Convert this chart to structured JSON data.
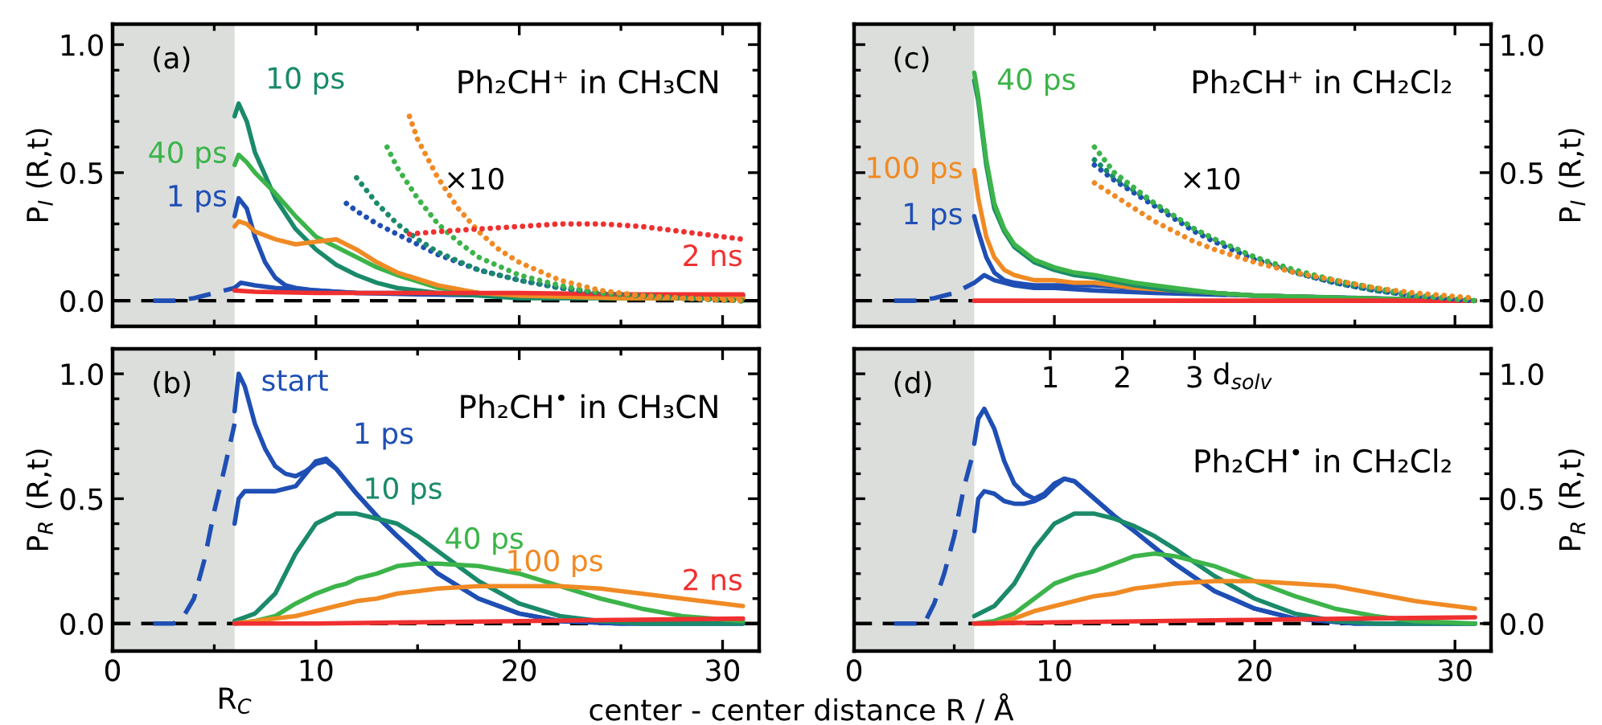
{
  "chart_data": [
    {
      "type": "line",
      "ylabel": "P$_{I}$ (R,t)",
      "title": "Ph₂CH⁺ in CH₃CN",
      "annotations": [
        "(a)",
        "×10"
      ],
      "tick_labels": "y",
      "xlim": [
        0,
        31.8
      ],
      "ylim": [
        -0.1,
        1.08
      ],
      "xticks": [
        0,
        {
          "value": 5,
          "label": null
        },
        10,
        {
          "value": 15,
          "label": null
        },
        20,
        {
          "value": 25,
          "label": null
        },
        30
      ],
      "yticks": [
        {
          "value": 0,
          "label": "0.0"
        },
        {
          "value": 0.1,
          "label": null
        },
        {
          "value": 0.2,
          "label": null
        },
        {
          "value": 0.3,
          "label": null
        },
        {
          "value": 0.4,
          "label": null
        },
        {
          "value": 0.5,
          "label": "0.5"
        },
        {
          "value": 0.6,
          "label": null
        },
        {
          "value": 0.7,
          "label": null
        },
        {
          "value": 0.8,
          "label": null
        },
        {
          "value": 0.9,
          "label": null
        },
        {
          "value": 1,
          "label": "1.0"
        }
      ],
      "bands": [
        {
          "axis": "x",
          "from": 0,
          "to": 6,
          "color": "#dcdedc"
        }
      ],
      "ref_lines": [
        {
          "axis": "y",
          "value": 0,
          "color": "#000000",
          "line_style": "dashed"
        }
      ],
      "series": [
        {
          "color": "#1f4fb4",
          "line_style": "dashed",
          "x": [
            2,
            3,
            4,
            4.5,
            5,
            5.5,
            6
          ],
          "values": [
            0,
            0,
            0.01,
            0.02,
            0.03,
            0.04,
            0.05
          ]
        },
        {
          "color": "#1f4fb4",
          "x": [
            6,
            6.3,
            7,
            8,
            9,
            10,
            12,
            15,
            20,
            31
          ],
          "values": [
            0.05,
            0.07,
            0.06,
            0.05,
            0.045,
            0.04,
            0.03,
            0.025,
            0.02,
            0.02
          ]
        },
        {
          "name": "1 ps",
          "color": "#1f4fb4",
          "x": [
            6,
            6.2,
            6.6,
            7,
            7.5,
            8,
            8.5,
            9,
            10,
            11,
            12,
            14,
            16,
            20,
            25,
            31
          ],
          "values": [
            0.33,
            0.4,
            0.36,
            0.25,
            0.15,
            0.09,
            0.06,
            0.05,
            0.04,
            0.035,
            0.03,
            0.03,
            0.025,
            0.02,
            0.02,
            0.02
          ]
        },
        {
          "name": "10 ps",
          "color": "#1a8a6a",
          "x": [
            6,
            6.2,
            6.6,
            7,
            8,
            9,
            10,
            11,
            12,
            13,
            14,
            16,
            18,
            20,
            25,
            31
          ],
          "values": [
            0.72,
            0.77,
            0.7,
            0.58,
            0.4,
            0.28,
            0.2,
            0.14,
            0.1,
            0.07,
            0.05,
            0.03,
            0.02,
            0.01,
            0.01,
            0.01
          ]
        },
        {
          "name": "40 ps",
          "color": "#3cb44a",
          "x": [
            6,
            6.2,
            6.6,
            7,
            8,
            9,
            10,
            11,
            12,
            13,
            14,
            16,
            18,
            20,
            25,
            31
          ],
          "values": [
            0.53,
            0.57,
            0.54,
            0.5,
            0.42,
            0.33,
            0.25,
            0.21,
            0.17,
            0.13,
            0.1,
            0.05,
            0.03,
            0.02,
            0.01,
            0.01
          ]
        },
        {
          "color": "#f08a24",
          "x": [
            6,
            6.2,
            6.6,
            7,
            8,
            9,
            10,
            11,
            12,
            13,
            14,
            16,
            18,
            20,
            25,
            31
          ],
          "values": [
            0.29,
            0.31,
            0.3,
            0.27,
            0.24,
            0.22,
            0.23,
            0.24,
            0.2,
            0.15,
            0.11,
            0.06,
            0.03,
            0.02,
            0.01,
            0.01
          ]
        },
        {
          "name": "2 ns",
          "color": "#f03030",
          "x": [
            6,
            7,
            10,
            15,
            20,
            25,
            31
          ],
          "values": [
            0.04,
            0.035,
            0.03,
            0.03,
            0.03,
            0.025,
            0.025
          ]
        },
        {
          "color": "#1f4fb4",
          "line_style": "dotted",
          "x": [
            11.5,
            12,
            13,
            14,
            15,
            16,
            18,
            20,
            22,
            24,
            26,
            28,
            31
          ],
          "values": [
            0.38,
            0.35,
            0.3,
            0.26,
            0.22,
            0.18,
            0.12,
            0.08,
            0.05,
            0.03,
            0.02,
            0.01,
            0.0
          ]
        },
        {
          "color": "#1a8a6a",
          "line_style": "dotted",
          "x": [
            12,
            13,
            14,
            15,
            16,
            18,
            20,
            22,
            24,
            26,
            28,
            31
          ],
          "values": [
            0.48,
            0.38,
            0.3,
            0.24,
            0.19,
            0.12,
            0.08,
            0.05,
            0.03,
            0.02,
            0.01,
            0.0
          ]
        },
        {
          "color": "#3cb44a",
          "line_style": "dotted",
          "x": [
            13.5,
            14,
            15,
            16,
            17,
            18,
            20,
            22,
            24,
            26,
            28,
            31
          ],
          "values": [
            0.6,
            0.52,
            0.4,
            0.3,
            0.23,
            0.17,
            0.1,
            0.06,
            0.03,
            0.02,
            0.01,
            0.0
          ]
        },
        {
          "color": "#f08a24",
          "line_style": "dotted",
          "x": [
            14.6,
            15,
            16,
            17,
            18,
            19,
            20,
            22,
            24,
            26,
            28,
            31
          ],
          "values": [
            0.72,
            0.63,
            0.48,
            0.36,
            0.27,
            0.2,
            0.15,
            0.08,
            0.04,
            0.02,
            0.01,
            0.0
          ]
        },
        {
          "color": "#f03030",
          "line_style": "dotted",
          "x": [
            14.6,
            16,
            18,
            20,
            22,
            24,
            26,
            28,
            31
          ],
          "values": [
            0.26,
            0.27,
            0.28,
            0.29,
            0.3,
            0.3,
            0.29,
            0.27,
            0.24
          ]
        }
      ]
    },
    {
      "type": "line",
      "y2label": "P$_{I}$ (R,t)",
      "title": "Ph₂CH⁺ in CH₂Cl₂",
      "annotations": [
        "(c)",
        "×10"
      ],
      "tick_labels": "y",
      "xlim": [
        0,
        31.8
      ],
      "y2lim": [
        -0.1,
        1.08
      ],
      "xticks": [
        0,
        {
          "value": 5,
          "label": null
        },
        10,
        {
          "value": 15,
          "label": null
        },
        20,
        {
          "value": 25,
          "label": null
        },
        30
      ],
      "y2ticks": [
        {
          "value": 0,
          "label": "0.0"
        },
        {
          "value": 0.1,
          "label": null
        },
        {
          "value": 0.2,
          "label": null
        },
        {
          "value": 0.3,
          "label": null
        },
        {
          "value": 0.4,
          "label": null
        },
        {
          "value": 0.5,
          "label": "0.5"
        },
        {
          "value": 0.6,
          "label": null
        },
        {
          "value": 0.7,
          "label": null
        },
        {
          "value": 0.8,
          "label": null
        },
        {
          "value": 0.9,
          "label": null
        },
        {
          "value": 1,
          "label": "1.0"
        }
      ],
      "bands": [
        {
          "axis": "x",
          "from": 0,
          "to": 6,
          "color": "#dcdedc"
        }
      ],
      "ref_lines": [
        {
          "axis": "y2",
          "value": 0,
          "color": "#000000",
          "line_style": "dashed"
        }
      ],
      "series": [
        {
          "axis": "y2",
          "color": "#1f4fb4",
          "line_style": "dashed",
          "x": [
            2,
            3,
            4,
            4.5,
            5,
            5.5,
            6
          ],
          "values": [
            0,
            0,
            0.01,
            0.02,
            0.03,
            0.05,
            0.07
          ]
        },
        {
          "axis": "y2",
          "color": "#1f4fb4",
          "x": [
            6,
            6.5,
            7,
            7.5,
            8,
            9,
            10,
            12,
            15,
            20,
            31
          ],
          "values": [
            0.07,
            0.1,
            0.08,
            0.07,
            0.06,
            0.05,
            0.05,
            0.04,
            0.03,
            0.02,
            0.0
          ]
        },
        {
          "axis": "y2",
          "name": "1 ps",
          "color": "#1f4fb4",
          "x": [
            6,
            6.2,
            6.6,
            7,
            7.5,
            8,
            9,
            10,
            11,
            12,
            14,
            16,
            18,
            20,
            25,
            31
          ],
          "values": [
            0.33,
            0.27,
            0.17,
            0.11,
            0.08,
            0.07,
            0.06,
            0.06,
            0.06,
            0.06,
            0.05,
            0.04,
            0.03,
            0.02,
            0.01,
            0.0
          ]
        },
        {
          "axis": "y2",
          "name": "100 ps",
          "color": "#f08a24",
          "x": [
            6,
            6.2,
            6.6,
            7,
            7.5,
            8,
            9,
            10,
            11,
            12,
            14,
            16,
            18,
            20,
            25,
            31
          ],
          "values": [
            0.51,
            0.4,
            0.25,
            0.17,
            0.12,
            0.1,
            0.08,
            0.08,
            0.07,
            0.07,
            0.05,
            0.04,
            0.03,
            0.02,
            0.01,
            0.0
          ]
        },
        {
          "axis": "y2",
          "color": "#1a8a6a",
          "x": [
            6,
            6.2,
            6.6,
            7,
            7.5,
            8,
            9,
            10,
            11,
            12,
            14,
            16,
            18,
            20,
            25,
            31
          ],
          "values": [
            0.86,
            0.78,
            0.53,
            0.36,
            0.27,
            0.21,
            0.15,
            0.12,
            0.1,
            0.09,
            0.06,
            0.04,
            0.03,
            0.02,
            0.01,
            0.0
          ]
        },
        {
          "axis": "y2",
          "name": "40 ps",
          "color": "#3cb44a",
          "x": [
            6,
            6.2,
            6.6,
            7,
            7.5,
            8,
            9,
            10,
            11,
            12,
            14,
            16,
            18,
            20,
            25,
            31
          ],
          "values": [
            0.89,
            0.8,
            0.55,
            0.38,
            0.28,
            0.22,
            0.16,
            0.13,
            0.11,
            0.1,
            0.07,
            0.05,
            0.03,
            0.02,
            0.01,
            0.0
          ]
        },
        {
          "axis": "y2",
          "color": "#f03030",
          "x": [
            6,
            10,
            20,
            31
          ],
          "values": [
            0.0,
            0.0,
            0.0,
            0.0
          ]
        },
        {
          "axis": "y2",
          "color": "#1f4fb4",
          "line_style": "dotted",
          "x": [
            12,
            13,
            14,
            15,
            16,
            17,
            18,
            20,
            22,
            24,
            26,
            28,
            31
          ],
          "values": [
            0.53,
            0.47,
            0.42,
            0.37,
            0.32,
            0.27,
            0.23,
            0.16,
            0.11,
            0.07,
            0.04,
            0.02,
            0.0
          ]
        },
        {
          "axis": "y2",
          "color": "#1a8a6a",
          "line_style": "dotted",
          "x": [
            12,
            13,
            14,
            15,
            16,
            17,
            18,
            20,
            22,
            24,
            26,
            28,
            31
          ],
          "values": [
            0.55,
            0.48,
            0.43,
            0.38,
            0.33,
            0.28,
            0.24,
            0.17,
            0.11,
            0.07,
            0.04,
            0.02,
            0.0
          ]
        },
        {
          "axis": "y2",
          "color": "#3cb44a",
          "line_style": "dotted",
          "x": [
            12,
            13,
            14,
            15,
            16,
            17,
            18,
            20,
            22,
            24,
            26,
            28,
            31
          ],
          "values": [
            0.6,
            0.5,
            0.44,
            0.38,
            0.33,
            0.28,
            0.24,
            0.17,
            0.12,
            0.08,
            0.05,
            0.02,
            0.0
          ]
        },
        {
          "axis": "y2",
          "color": "#f08a24",
          "line_style": "dotted",
          "x": [
            12,
            13,
            14,
            15,
            16,
            17,
            18,
            20,
            22,
            24,
            26,
            28,
            31
          ],
          "values": [
            0.46,
            0.41,
            0.36,
            0.31,
            0.27,
            0.23,
            0.2,
            0.15,
            0.11,
            0.08,
            0.05,
            0.03,
            0.01
          ]
        }
      ]
    },
    {
      "type": "line",
      "ylabel": "P$_{R}$ (R,t)",
      "xlabel": "center - center distance R / Å",
      "title": "Ph₂CH$^{•}$ in CH₃CN",
      "annotations": [
        "(b)"
      ],
      "xlim": [
        0,
        31.8
      ],
      "ylim": [
        -0.11,
        1.1
      ],
      "xticks": [
        0,
        {
          "value": 5,
          "label": null
        },
        10,
        {
          "value": 15,
          "label": null
        },
        20,
        {
          "value": 25,
          "label": null
        },
        30
      ],
      "yticks": [
        {
          "value": 0,
          "label": "0.0"
        },
        {
          "value": 0.1,
          "label": null
        },
        {
          "value": 0.2,
          "label": null
        },
        {
          "value": 0.3,
          "label": null
        },
        {
          "value": 0.4,
          "label": null
        },
        {
          "value": 0.5,
          "label": "0.5"
        },
        {
          "value": 0.6,
          "label": null
        },
        {
          "value": 0.7,
          "label": null
        },
        {
          "value": 0.8,
          "label": null
        },
        {
          "value": 0.9,
          "label": null
        },
        {
          "value": 1,
          "label": "1.0"
        }
      ],
      "bands": [
        {
          "axis": "x",
          "from": 0,
          "to": 6,
          "color": "#dcdedc",
          "label": "R$_{C}$"
        }
      ],
      "ref_lines": [
        {
          "axis": "y",
          "value": 0,
          "color": "#000000",
          "line_style": "dashed"
        }
      ],
      "series": [
        {
          "color": "#1f4fb4",
          "line_style": "dashed",
          "x": [
            2,
            3,
            3.5,
            4,
            4.5,
            5,
            5.5,
            6
          ],
          "values": [
            0,
            0,
            0.03,
            0.1,
            0.25,
            0.45,
            0.62,
            0.8
          ]
        },
        {
          "name": "start",
          "color": "#1f4fb4",
          "x": [
            6,
            6.2,
            6.5,
            7,
            7.5,
            8,
            8.5,
            9,
            9.5,
            10,
            10.5,
            11,
            12,
            13,
            14,
            16,
            18,
            20,
            22,
            25,
            31
          ],
          "values": [
            0.85,
            1.0,
            0.95,
            0.8,
            0.7,
            0.63,
            0.6,
            0.59,
            0.61,
            0.64,
            0.65,
            0.62,
            0.52,
            0.43,
            0.35,
            0.2,
            0.1,
            0.04,
            0.01,
            0.0,
            0.0
          ]
        },
        {
          "name": "1 ps",
          "color": "#1f4fb4",
          "x": [
            6,
            6.2,
            6.5,
            7,
            7.5,
            8,
            8.5,
            9,
            9.5,
            10,
            10.5,
            11,
            12,
            13,
            14,
            16,
            18,
            20,
            22,
            25,
            31
          ],
          "values": [
            0.4,
            0.5,
            0.53,
            0.53,
            0.53,
            0.53,
            0.54,
            0.55,
            0.6,
            0.65,
            0.66,
            0.62,
            0.52,
            0.43,
            0.35,
            0.2,
            0.1,
            0.04,
            0.01,
            0.0,
            0.0
          ]
        },
        {
          "name": "10 ps",
          "color": "#1a8a6a",
          "x": [
            6,
            7,
            8,
            9,
            10,
            11,
            11.5,
            12,
            13,
            14,
            15,
            16,
            18,
            20,
            22,
            24,
            26,
            28,
            31
          ],
          "values": [
            0.01,
            0.04,
            0.12,
            0.28,
            0.4,
            0.44,
            0.44,
            0.44,
            0.42,
            0.4,
            0.35,
            0.29,
            0.17,
            0.08,
            0.03,
            0.01,
            0.0,
            0.0,
            0.0
          ]
        },
        {
          "name": "40 ps",
          "color": "#3cb44a",
          "x": [
            6,
            7,
            8,
            9,
            10,
            11,
            11.5,
            12,
            13,
            14,
            15,
            16,
            18,
            20,
            22,
            24,
            26,
            28,
            31
          ],
          "values": [
            0.0,
            0.01,
            0.03,
            0.08,
            0.12,
            0.15,
            0.16,
            0.18,
            0.2,
            0.23,
            0.24,
            0.24,
            0.23,
            0.2,
            0.15,
            0.1,
            0.06,
            0.03,
            0.01
          ]
        },
        {
          "name": "100 ps",
          "color": "#f08a24",
          "x": [
            6,
            7,
            8,
            9,
            10,
            11,
            11.5,
            12,
            13,
            14,
            15,
            16,
            18,
            20,
            22,
            24,
            26,
            28,
            31
          ],
          "values": [
            0.0,
            0.01,
            0.02,
            0.03,
            0.05,
            0.07,
            0.08,
            0.09,
            0.1,
            0.12,
            0.13,
            0.14,
            0.15,
            0.15,
            0.15,
            0.14,
            0.12,
            0.1,
            0.07
          ]
        },
        {
          "name": "2 ns",
          "color": "#f03030",
          "x": [
            6,
            10,
            15,
            20,
            25,
            31
          ],
          "values": [
            0.0,
            0.0,
            0.005,
            0.01,
            0.015,
            0.02
          ]
        }
      ]
    },
    {
      "type": "line",
      "y2label": "P$_{R}$ (R,t)",
      "title": "Ph₂CH$^{•}$ in CH₂Cl₂",
      "annotations": [
        "(d)"
      ],
      "x2label": "d$_{solv}$",
      "xlim": [
        0,
        31.8
      ],
      "y2lim": [
        -0.11,
        1.1
      ],
      "x2lim": [
        -1.72,
        7.11
      ],
      "xticks": [
        0,
        {
          "value": 5,
          "label": null
        },
        10,
        {
          "value": 15,
          "label": null
        },
        20,
        {
          "value": 25,
          "label": null
        },
        30
      ],
      "x2ticks": [
        1,
        2,
        3
      ],
      "y2ticks": [
        {
          "value": 0,
          "label": "0.0"
        },
        {
          "value": 0.1,
          "label": null
        },
        {
          "value": 0.2,
          "label": null
        },
        {
          "value": 0.3,
          "label": null
        },
        {
          "value": 0.4,
          "label": null
        },
        {
          "value": 0.5,
          "label": "0.5"
        },
        {
          "value": 0.6,
          "label": null
        },
        {
          "value": 0.7,
          "label": null
        },
        {
          "value": 0.8,
          "label": null
        },
        {
          "value": 0.9,
          "label": null
        },
        {
          "value": 1,
          "label": "1.0"
        }
      ],
      "bands": [
        {
          "axis": "x",
          "from": 0,
          "to": 6,
          "color": "#dcdedc"
        }
      ],
      "ref_lines": [
        {
          "axis": "y2",
          "value": 0,
          "color": "#000000",
          "line_style": "dashed"
        }
      ],
      "series": [
        {
          "axis": "y2",
          "color": "#1f4fb4",
          "line_style": "dashed",
          "x": [
            2,
            3,
            3.5,
            4,
            4.5,
            5,
            5.5,
            6
          ],
          "values": [
            0,
            0,
            0.0,
            0.08,
            0.2,
            0.35,
            0.55,
            0.7
          ]
        },
        {
          "axis": "y2",
          "color": "#1f4fb4",
          "x": [
            6,
            6.2,
            6.5,
            7,
            7.5,
            8,
            8.5,
            9,
            9.5,
            10,
            10.5,
            11,
            12,
            13,
            14,
            16,
            18,
            20,
            22,
            25,
            31
          ],
          "values": [
            0.72,
            0.82,
            0.86,
            0.78,
            0.65,
            0.56,
            0.52,
            0.5,
            0.52,
            0.56,
            0.58,
            0.57,
            0.5,
            0.43,
            0.37,
            0.24,
            0.13,
            0.06,
            0.02,
            0.0,
            0.0
          ]
        },
        {
          "axis": "y2",
          "color": "#1f4fb4",
          "x": [
            6,
            6.2,
            6.5,
            7,
            7.5,
            8,
            8.5,
            9,
            9.5,
            10,
            10.5,
            11,
            12,
            13,
            14,
            16,
            18,
            20,
            22,
            25,
            31
          ],
          "values": [
            0.37,
            0.5,
            0.53,
            0.52,
            0.49,
            0.48,
            0.48,
            0.49,
            0.51,
            0.55,
            0.58,
            0.57,
            0.5,
            0.43,
            0.37,
            0.24,
            0.13,
            0.06,
            0.02,
            0.0,
            0.0
          ]
        },
        {
          "axis": "y2",
          "color": "#1a8a6a",
          "x": [
            6,
            7,
            8,
            9,
            10,
            11,
            11.5,
            12,
            13,
            14,
            15,
            16,
            18,
            20,
            22,
            24,
            26,
            28,
            31
          ],
          "values": [
            0.03,
            0.07,
            0.16,
            0.3,
            0.4,
            0.44,
            0.44,
            0.44,
            0.42,
            0.39,
            0.35,
            0.3,
            0.19,
            0.1,
            0.04,
            0.01,
            0.0,
            0.0,
            0.0
          ]
        },
        {
          "axis": "y2",
          "color": "#3cb44a",
          "x": [
            6,
            7,
            8,
            9,
            10,
            11,
            11.5,
            12,
            13,
            14,
            15,
            16,
            18,
            20,
            22,
            24,
            26,
            28,
            31
          ],
          "values": [
            0.0,
            0.01,
            0.04,
            0.1,
            0.16,
            0.19,
            0.2,
            0.21,
            0.24,
            0.27,
            0.28,
            0.27,
            0.23,
            0.17,
            0.11,
            0.06,
            0.03,
            0.01,
            0.0
          ]
        },
        {
          "axis": "y2",
          "color": "#f08a24",
          "x": [
            6,
            7,
            8,
            9,
            10,
            11,
            11.5,
            12,
            13,
            14,
            15,
            16,
            18,
            20,
            22,
            24,
            26,
            28,
            31
          ],
          "values": [
            0.0,
            0.0,
            0.02,
            0.05,
            0.07,
            0.09,
            0.1,
            0.11,
            0.12,
            0.14,
            0.15,
            0.16,
            0.17,
            0.17,
            0.16,
            0.15,
            0.12,
            0.09,
            0.06
          ]
        },
        {
          "axis": "y2",
          "color": "#f03030",
          "x": [
            6,
            10,
            15,
            20,
            25,
            31
          ],
          "values": [
            0.0,
            0.005,
            0.01,
            0.015,
            0.02,
            0.025
          ]
        }
      ]
    }
  ]
}
